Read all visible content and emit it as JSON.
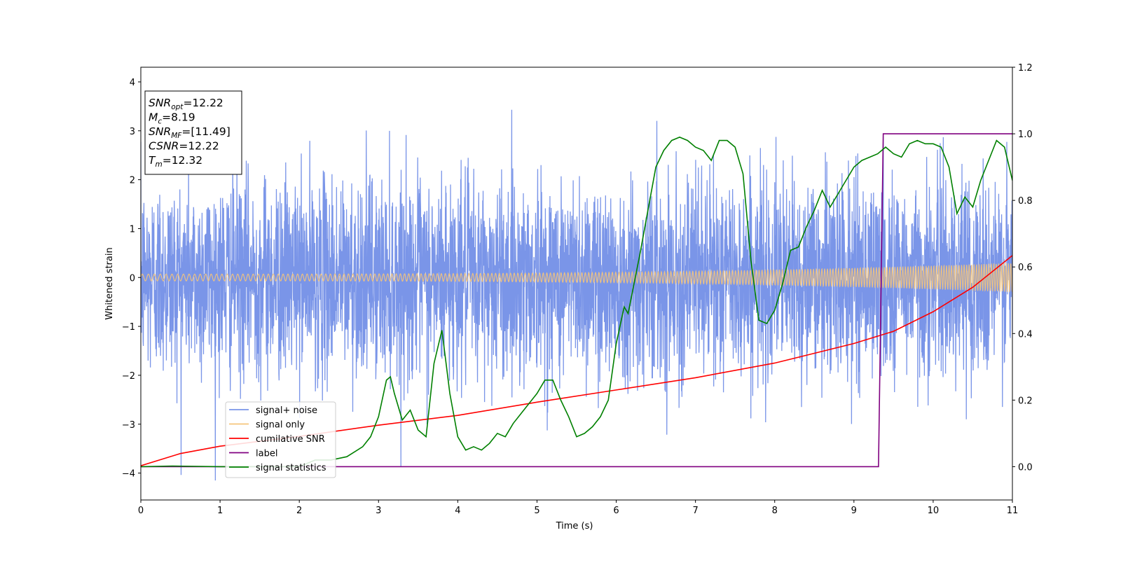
{
  "chart_data": {
    "type": "line",
    "xlabel": "Time (s)",
    "ylabel": "Whitened strain",
    "xlim": [
      0,
      11
    ],
    "ylim": [
      -4.55,
      4.3
    ],
    "y2lim": [
      -0.1,
      1.2
    ],
    "xticks": [
      "0",
      "1",
      "2",
      "3",
      "4",
      "5",
      "6",
      "7",
      "8",
      "9",
      "10",
      "11"
    ],
    "yticks": [
      "4",
      "3",
      "2",
      "1",
      "0",
      "−1",
      "−2",
      "−3",
      "−4"
    ],
    "y2ticks": [
      "1.2",
      "1.0",
      "0.8",
      "0.6",
      "0.4",
      "0.2",
      "0.0"
    ],
    "legend_position": "lower-left",
    "info_box": {
      "lines": [
        {
          "sym": "SNR",
          "sub": "opt",
          "value": "=12.22"
        },
        {
          "sym": "M",
          "sub": "c",
          "value": "=8.19"
        },
        {
          "sym": "SNR",
          "sub": "MF",
          "value": "=[11.49]"
        },
        {
          "sym": "CSNR",
          "sub": "",
          "value": "=12.22"
        },
        {
          "sym": "T",
          "sub": "m",
          "value": "=12.32"
        }
      ]
    },
    "series": [
      {
        "name": "signal+ noise",
        "color": "#7a95e8",
        "axis": "left",
        "kind": "noise",
        "envelope_sigma": 1.0,
        "peak_high": 3.9,
        "peak_low": -4.15
      },
      {
        "name": "signal only",
        "color": "#f5c47a",
        "axis": "left",
        "kind": "chirp",
        "amplitude_start": 0.07,
        "amplitude_end": 0.3
      },
      {
        "name": "cumilative SNR",
        "color": "#ff0000",
        "axis": "left",
        "x": [
          0,
          0.5,
          1,
          2,
          3,
          4,
          5,
          6,
          7,
          8,
          9,
          9.5,
          10,
          10.5,
          11
        ],
        "y": [
          -3.85,
          -3.6,
          -3.45,
          -3.25,
          -3.02,
          -2.82,
          -2.55,
          -2.3,
          -2.05,
          -1.75,
          -1.35,
          -1.1,
          -0.7,
          -0.2,
          0.45
        ]
      },
      {
        "name": "label",
        "color": "#800080",
        "axis": "right",
        "x": [
          0,
          9.31,
          9.37,
          11
        ],
        "y": [
          0,
          0,
          1,
          1
        ]
      },
      {
        "name": "signal statistics",
        "color": "#008000",
        "axis": "right",
        "x": [
          0,
          0.4,
          1,
          2,
          2.2,
          2.4,
          2.6,
          2.8,
          2.9,
          3.0,
          3.1,
          3.15,
          3.2,
          3.3,
          3.4,
          3.5,
          3.6,
          3.7,
          3.8,
          3.9,
          4.0,
          4.1,
          4.2,
          4.3,
          4.4,
          4.5,
          4.6,
          4.7,
          4.8,
          4.9,
          5.0,
          5.1,
          5.2,
          5.3,
          5.4,
          5.5,
          5.6,
          5.7,
          5.8,
          5.9,
          6.0,
          6.1,
          6.15,
          6.2,
          6.3,
          6.4,
          6.5,
          6.6,
          6.7,
          6.8,
          6.9,
          7.0,
          7.1,
          7.2,
          7.3,
          7.4,
          7.5,
          7.6,
          7.7,
          7.8,
          7.9,
          8.0,
          8.1,
          8.2,
          8.3,
          8.4,
          8.5,
          8.6,
          8.7,
          8.8,
          8.9,
          9.0,
          9.1,
          9.2,
          9.3,
          9.4,
          9.5,
          9.6,
          9.7,
          9.8,
          9.9,
          10.0,
          10.1,
          10.2,
          10.3,
          10.4,
          10.5,
          10.6,
          10.7,
          10.8,
          10.9,
          11.0
        ],
        "y": [
          0.0,
          0.002,
          0.0,
          0.0,
          0.02,
          0.02,
          0.03,
          0.06,
          0.09,
          0.15,
          0.26,
          0.27,
          0.22,
          0.14,
          0.17,
          0.11,
          0.09,
          0.31,
          0.41,
          0.22,
          0.09,
          0.05,
          0.06,
          0.05,
          0.07,
          0.1,
          0.09,
          0.13,
          0.16,
          0.19,
          0.22,
          0.26,
          0.26,
          0.2,
          0.15,
          0.09,
          0.1,
          0.12,
          0.15,
          0.2,
          0.37,
          0.48,
          0.46,
          0.52,
          0.64,
          0.77,
          0.9,
          0.95,
          0.98,
          0.99,
          0.98,
          0.96,
          0.95,
          0.92,
          0.98,
          0.98,
          0.96,
          0.88,
          0.62,
          0.44,
          0.43,
          0.47,
          0.55,
          0.65,
          0.66,
          0.72,
          0.77,
          0.83,
          0.78,
          0.82,
          0.86,
          0.9,
          0.92,
          0.93,
          0.94,
          0.96,
          0.94,
          0.93,
          0.97,
          0.98,
          0.97,
          0.97,
          0.96,
          0.9,
          0.76,
          0.81,
          0.78,
          0.86,
          0.92,
          0.98,
          0.96,
          0.86
        ]
      }
    ]
  }
}
